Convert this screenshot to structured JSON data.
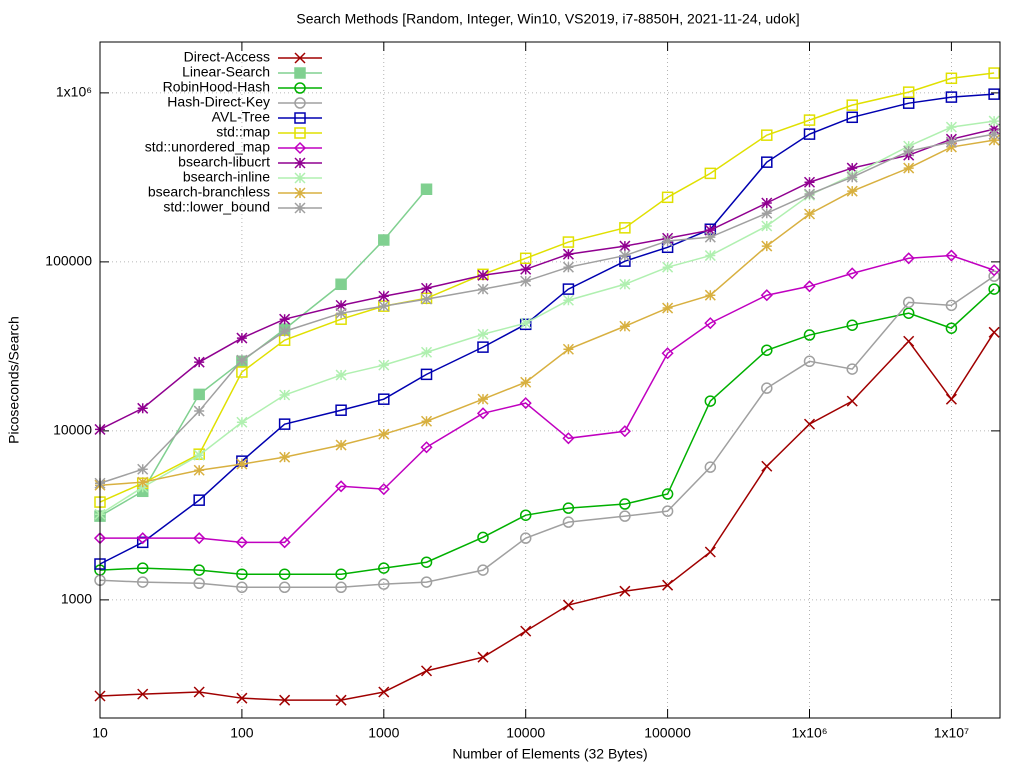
{
  "chart_data": {
    "type": "line",
    "title": "Search Methods [Random, Integer, Win10, VS2019, i7-8850H, 2021-11-24, udok]",
    "x_label": "Number of Elements (32 Bytes)",
    "y_label": "Picoseconds/Search",
    "x": [
      10,
      20,
      50,
      100,
      200,
      500,
      1000,
      2000,
      5000,
      10000,
      20000,
      50000,
      100000,
      200000,
      500000,
      1000000,
      2000000,
      5000000,
      10000000,
      20000000
    ],
    "xlim": [
      10,
      22000000
    ],
    "xticks": [
      10,
      100,
      1000,
      10000,
      100000,
      {
        "value": 1000000,
        "label": "1x10⁶"
      },
      {
        "value": 10000000,
        "label": "1x10⁷"
      }
    ],
    "ylim": [
      200,
      2000000
    ],
    "yticks": [
      1000,
      10000,
      100000,
      {
        "value": 1000000,
        "label": "1x10⁶"
      }
    ],
    "x_log": true,
    "y_log": true,
    "grid": true,
    "legend": "top-left",
    "series": [
      {
        "name": "Direct-Access",
        "color": "#a00000",
        "marker": "x",
        "values": [
          270,
          277,
          285,
          262,
          255,
          255,
          285,
          380,
          458,
          653,
          932,
          1126,
          1222,
          1920,
          6177,
          10960,
          15000,
          33900,
          15400,
          38300
        ]
      },
      {
        "name": "Linear-Search",
        "color": "#80d090",
        "marker": "square-filled",
        "values": [
          3130,
          4390,
          16440,
          25800,
          40000,
          73700,
          134700,
          269000,
          null,
          null,
          null,
          null,
          null,
          null,
          null,
          null,
          null,
          null,
          null,
          null
        ]
      },
      {
        "name": "RobinHood-Hash",
        "color": "#00b000",
        "marker": "circle",
        "values": [
          1500,
          1542,
          1500,
          1419,
          1419,
          1419,
          1542,
          1670,
          2345,
          3170,
          3490,
          3690,
          4230,
          15000,
          30000,
          36900,
          42200,
          49700,
          40500,
          69000
        ]
      },
      {
        "name": "Hash-Direct-Key",
        "color": "#a0a0a0",
        "marker": "circle",
        "values": [
          1306,
          1274,
          1254,
          1187,
          1187,
          1187,
          1239,
          1274,
          1500,
          2318,
          2884,
          3130,
          3350,
          6100,
          17900,
          25800,
          23200,
          57600,
          55300,
          82300
        ]
      },
      {
        "name": "AVL-Tree",
        "color": "#0000b0",
        "marker": "square",
        "values": [
          1630,
          2190,
          3890,
          6620,
          10960,
          13250,
          15400,
          21600,
          31300,
          42700,
          69000,
          101000,
          122000,
          156000,
          389000,
          570000,
          717000,
          869000,
          944000,
          983000
        ]
      },
      {
        "name": "std::map",
        "color": "#e0e000",
        "marker": "square",
        "values": [
          3790,
          4900,
          7280,
          22300,
          34400,
          45800,
          54700,
          60900,
          84400,
          105000,
          131000,
          159000,
          241000,
          334000,
          562000,
          690000,
          846000,
          1010000,
          1220000,
          1310000
        ]
      },
      {
        "name": "std::unordered_map",
        "color": "#c000c0",
        "marker": "diamond",
        "values": [
          2318,
          2318,
          2318,
          2190,
          2190,
          4700,
          4520,
          8000,
          12700,
          14600,
          9040,
          9950,
          28800,
          43400,
          63500,
          71700,
          85500,
          105000,
          109000,
          89200
        ]
      },
      {
        "name": "bsearch-libucrt",
        "color": "#900090",
        "marker": "star",
        "values": [
          10200,
          13600,
          25500,
          35400,
          45800,
          55300,
          62600,
          69800,
          83300,
          90400,
          111000,
          124000,
          138000,
          154000,
          223000,
          296000,
          359000,
          428000,
          532000,
          610000
        ]
      },
      {
        "name": "bsearch-inline",
        "color": "#b0f0b0",
        "marker": "star",
        "values": [
          3210,
          4640,
          7180,
          11250,
          16300,
          21400,
          24500,
          29200,
          37300,
          43400,
          59300,
          73700,
          93000,
          109000,
          163000,
          248000,
          326000,
          484000,
          627000,
          681000
        ]
      },
      {
        "name": "bsearch-branchless",
        "color": "#d8b040",
        "marker": "star",
        "values": [
          4770,
          4970,
          5850,
          6360,
          6990,
          8240,
          9560,
          11400,
          15400,
          19400,
          30400,
          41600,
          53300,
          63500,
          124000,
          192000,
          262000,
          359000,
          478000,
          525000
        ]
      },
      {
        "name": "std::lower_bound",
        "color": "#a0a0a0",
        "marker": "star",
        "values": [
          4900,
          5930,
          13100,
          26200,
          38800,
          49700,
          54700,
          60200,
          69000,
          76900,
          93000,
          109000,
          133000,
          140000,
          194000,
          252000,
          317000,
          452000,
          512000,
          570000
        ]
      }
    ]
  }
}
